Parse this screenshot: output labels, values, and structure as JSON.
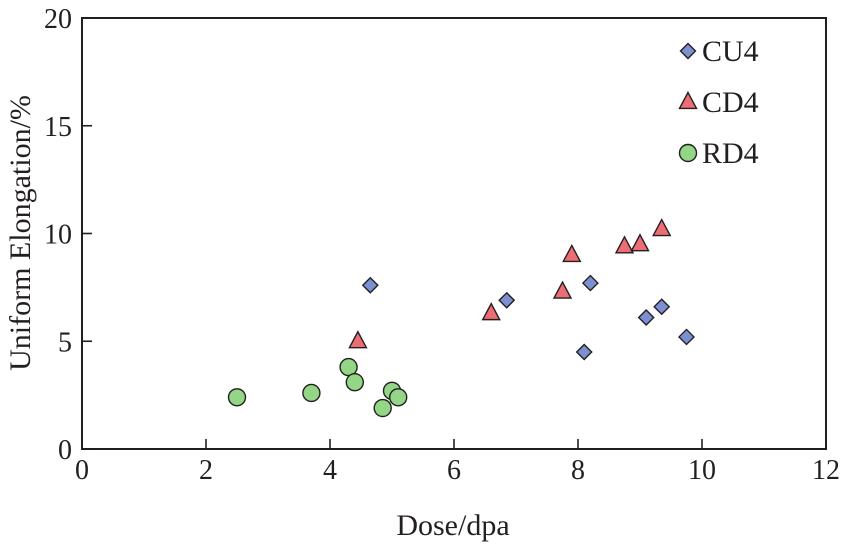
{
  "chart_data": {
    "type": "scatter",
    "xlabel": "Dose/dpa",
    "ylabel": "Uniform Elongation/%",
    "xlim": [
      0,
      12
    ],
    "ylim": [
      0,
      20
    ],
    "xticks": [
      "0",
      "2",
      "4",
      "6",
      "8",
      "10",
      "12"
    ],
    "yticks": [
      "0",
      "5",
      "10",
      "15",
      "20"
    ],
    "grid": false,
    "legend_position": "top-right",
    "series": [
      {
        "name": "CU4",
        "marker": "diamond",
        "color": "#7b8fd1",
        "points": [
          {
            "x": 4.65,
            "y": 7.6
          },
          {
            "x": 6.85,
            "y": 6.9
          },
          {
            "x": 8.1,
            "y": 4.5
          },
          {
            "x": 8.2,
            "y": 7.7
          },
          {
            "x": 9.1,
            "y": 6.1
          },
          {
            "x": 9.35,
            "y": 6.6
          },
          {
            "x": 9.75,
            "y": 5.2
          }
        ]
      },
      {
        "name": "CD4",
        "marker": "triangle",
        "color": "#ec6d73",
        "points": [
          {
            "x": 4.45,
            "y": 5.0
          },
          {
            "x": 6.6,
            "y": 6.3
          },
          {
            "x": 7.75,
            "y": 7.3
          },
          {
            "x": 7.9,
            "y": 9.0
          },
          {
            "x": 8.75,
            "y": 9.4
          },
          {
            "x": 9.0,
            "y": 9.5
          },
          {
            "x": 9.35,
            "y": 10.2
          }
        ]
      },
      {
        "name": "RD4",
        "marker": "circle",
        "color": "#93d685",
        "points": [
          {
            "x": 2.5,
            "y": 2.4
          },
          {
            "x": 3.7,
            "y": 2.6
          },
          {
            "x": 4.3,
            "y": 3.8
          },
          {
            "x": 4.4,
            "y": 3.1
          },
          {
            "x": 4.85,
            "y": 1.9
          },
          {
            "x": 5.0,
            "y": 2.7
          },
          {
            "x": 5.1,
            "y": 2.4
          }
        ]
      }
    ]
  }
}
